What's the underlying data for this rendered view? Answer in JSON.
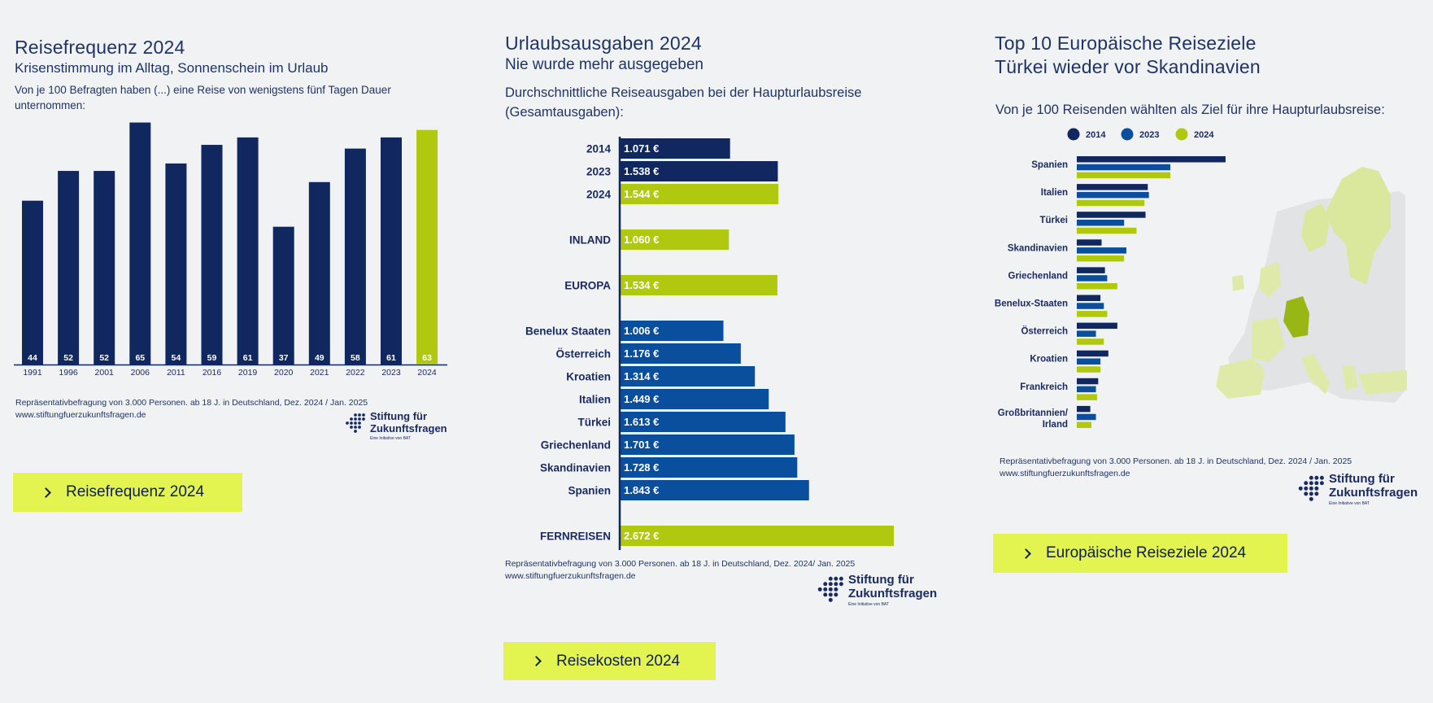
{
  "panel1": {
    "title": "Reisefrequenz 2024",
    "subtitle": "Krisenstimmung im Alltag, Sonnenschein im Urlaub",
    "description": "Von je 100 Befragten haben (...) eine Reise von wenigstens fünf Tagen Dauer unternommen:",
    "source_line1": "Repräsentativbefragung von 3.000 Personen. ab 18 J. in Deutschland, Dez. 2024 / Jan. 2025",
    "source_line2": "www.stiftungfuerzukunftsfragen.de",
    "button_label": "Reisefrequenz 2024"
  },
  "panel2": {
    "title": "Urlaubsausgaben 2024",
    "subtitle": "Nie wurde mehr ausgegeben",
    "description": "Durchschnittliche Reiseausgaben bei der Haupturlaubsreise (Gesamtausgaben):",
    "source_line1": "Repräsentativbefragung von 3.000 Personen. ab 18 J. in Deutschland, Dez. 2024/ Jan. 2025",
    "source_line2": "www.stiftungfuerzukunftsfragen.de",
    "button_label": "Reisekosten 2024"
  },
  "panel3": {
    "title": "Top 10 Europäische Reiseziele",
    "subtitle": "Türkei wieder vor Skandinavien",
    "description": "Von je 100 Reisenden wählten als Ziel für ihre Haupturlaubsreise:",
    "source_line1": "Repräsentativbefragung von 3.000 Personen. ab 18 J. in Deutschland, Dez. 2024 / Jan. 2025",
    "source_line2": "www.stiftungfuerzukunftsfragen.de",
    "button_label": "Europäische Reiseziele 2024"
  },
  "logo": {
    "line1": "Stiftung für",
    "line2": "Zukunftsfragen",
    "tagline": "Eine Initiative von BAT"
  },
  "colors": {
    "navy": "#10285f",
    "blue": "#0a4f9e",
    "lime": "#b0c90f",
    "button": "#e3f34f",
    "background": "#f1f2f4"
  },
  "chart_data": [
    {
      "type": "bar",
      "categories": [
        "1991",
        "1996",
        "2001",
        "2006",
        "2011",
        "2016",
        "2019",
        "2020",
        "2021",
        "2022",
        "2023",
        "2024"
      ],
      "values": [
        44,
        52,
        52,
        65,
        54,
        59,
        61,
        37,
        49,
        58,
        61,
        63
      ],
      "title": "Reisefrequenz 2024",
      "highlight": "2024",
      "ylim": [
        0,
        66
      ]
    },
    {
      "type": "bar",
      "orientation": "horizontal",
      "title": "Urlaubsausgaben 2024",
      "unit": "€",
      "xlim": [
        0,
        2750
      ],
      "groups": [
        {
          "items": [
            {
              "label": "2014",
              "value": 1071,
              "display": "1.071 €",
              "color": "navy"
            },
            {
              "label": "2023",
              "value": 1538,
              "display": "1.538 €",
              "color": "navy"
            },
            {
              "label": "2024",
              "value": 1544,
              "display": "1.544 €",
              "color": "lime"
            }
          ]
        },
        {
          "items": [
            {
              "label": "INLAND",
              "value": 1060,
              "display": "1.060 €",
              "color": "lime"
            }
          ]
        },
        {
          "items": [
            {
              "label": "EUROPA",
              "value": 1534,
              "display": "1.534 €",
              "color": "lime"
            }
          ]
        },
        {
          "items": [
            {
              "label": "Benelux Staaten",
              "value": 1006,
              "display": "1.006 €",
              "color": "blue"
            },
            {
              "label": "Österreich",
              "value": 1176,
              "display": "1.176 €",
              "color": "blue"
            },
            {
              "label": "Kroatien",
              "value": 1314,
              "display": "1.314 €",
              "color": "blue"
            },
            {
              "label": "Italien",
              "value": 1449,
              "display": "1.449 €",
              "color": "blue"
            },
            {
              "label": "Türkei",
              "value": 1613,
              "display": "1.613 €",
              "color": "blue"
            },
            {
              "label": "Griechenland",
              "value": 1701,
              "display": "1.701 €",
              "color": "blue"
            },
            {
              "label": "Skandinavien",
              "value": 1728,
              "display": "1.728 €",
              "color": "blue"
            },
            {
              "label": "Spanien",
              "value": 1843,
              "display": "1.843 €",
              "color": "blue"
            }
          ]
        },
        {
          "items": [
            {
              "label": "FERNREISEN",
              "value": 2672,
              "display": "2.672 €",
              "color": "lime"
            }
          ]
        }
      ]
    },
    {
      "type": "bar",
      "orientation": "horizontal",
      "title": "Top 10 Europäische Reiseziele",
      "legend": [
        {
          "name": "2014",
          "color": "navy"
        },
        {
          "name": "2023",
          "color": "blue"
        },
        {
          "name": "2024",
          "color": "lime"
        }
      ],
      "legend_position": "top",
      "categories": [
        "Spanien",
        "Italien",
        "Türkei",
        "Skandinavien",
        "Griechenland",
        "Benelux-Staaten",
        "Österreich",
        "Kroatien",
        "Frankreich",
        "Großbritannien/ Irland"
      ],
      "series": [
        {
          "name": "2014",
          "values": [
            13.2,
            6.3,
            6.1,
            2.2,
            2.5,
            2.1,
            3.6,
            2.8,
            1.9,
            1.2
          ]
        },
        {
          "name": "2023",
          "values": [
            8.3,
            6.4,
            4.2,
            4.4,
            2.7,
            2.4,
            1.7,
            2.1,
            1.7,
            1.7
          ]
        },
        {
          "name": "2024",
          "values": [
            8.3,
            6.0,
            5.3,
            4.2,
            3.6,
            2.7,
            2.4,
            2.1,
            1.8,
            1.3
          ]
        }
      ],
      "xlim": [
        0,
        14
      ],
      "background": "map of Europe with Germany highlighted"
    }
  ]
}
